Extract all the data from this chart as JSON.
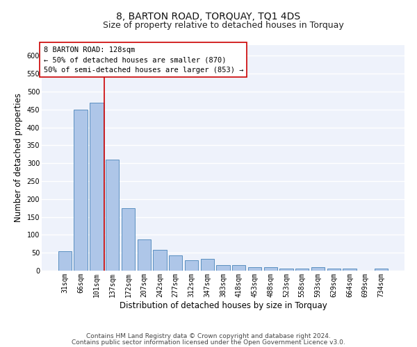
{
  "title": "8, BARTON ROAD, TORQUAY, TQ1 4DS",
  "subtitle": "Size of property relative to detached houses in Torquay",
  "xlabel": "Distribution of detached houses by size in Torquay",
  "ylabel": "Number of detached properties",
  "categories": [
    "31sqm",
    "66sqm",
    "101sqm",
    "137sqm",
    "172sqm",
    "207sqm",
    "242sqm",
    "277sqm",
    "312sqm",
    "347sqm",
    "383sqm",
    "418sqm",
    "453sqm",
    "488sqm",
    "523sqm",
    "558sqm",
    "593sqm",
    "629sqm",
    "664sqm",
    "699sqm",
    "734sqm"
  ],
  "values": [
    55,
    450,
    470,
    310,
    175,
    88,
    58,
    43,
    30,
    32,
    15,
    15,
    10,
    10,
    6,
    6,
    9,
    5,
    5,
    0,
    5
  ],
  "bar_color": "#aec6e8",
  "bar_edge_color": "#5a8fc0",
  "bar_linewidth": 0.7,
  "vline_color": "#cc0000",
  "vline_linewidth": 1.2,
  "vline_pos": 2.5,
  "annotation_text": "8 BARTON ROAD: 128sqm\n← 50% of detached houses are smaller (870)\n50% of semi-detached houses are larger (853) →",
  "annotation_box_edgecolor": "#cc0000",
  "annotation_box_facecolor": "#ffffff",
  "ylim": [
    0,
    630
  ],
  "yticks": [
    0,
    50,
    100,
    150,
    200,
    250,
    300,
    350,
    400,
    450,
    500,
    550,
    600
  ],
  "footer_line1": "Contains HM Land Registry data © Crown copyright and database right 2024.",
  "footer_line2": "Contains public sector information licensed under the Open Government Licence v3.0.",
  "bg_color": "#eef2fb",
  "grid_color": "#ffffff",
  "title_fontsize": 10,
  "subtitle_fontsize": 9,
  "xlabel_fontsize": 8.5,
  "ylabel_fontsize": 8.5,
  "annot_fontsize": 7.5,
  "tick_fontsize": 7,
  "footer_fontsize": 6.5
}
